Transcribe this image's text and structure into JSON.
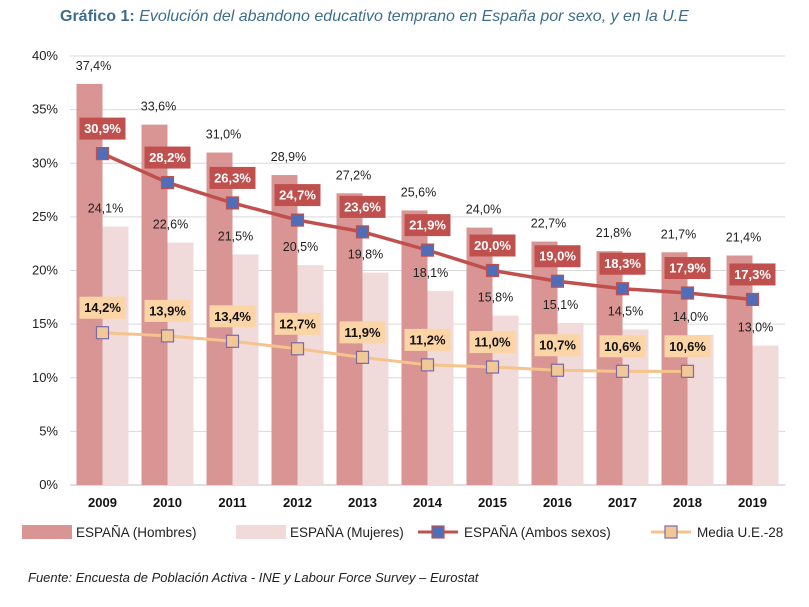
{
  "title": {
    "label": "Gráfico 1:",
    "text": "Evolución del abandono educativo temprano en España por sexo, y en la U.E"
  },
  "source": "Fuente: Encuesta de Población Activa - INE y Labour Force Survey – Eurostat",
  "colors": {
    "hombres": "#d99494",
    "mujeres": "#f0dada",
    "ambos_line": "#c0504d",
    "ambos_marker": "#4f6db8",
    "ue_line": "#f5c48c",
    "ue_marker": "#f2c896",
    "ue_marker_border": "#7a6aa8",
    "label_red_bg": "#c0504d",
    "label_orange_bg": "#fbd5a6"
  },
  "chart_data": {
    "type": "bar",
    "categories": [
      "2009",
      "2010",
      "2011",
      "2012",
      "2013",
      "2014",
      "2015",
      "2016",
      "2017",
      "2018",
      "2019"
    ],
    "ylim": [
      0,
      40
    ],
    "yticks": [
      "0%",
      "5%",
      "10%",
      "15%",
      "20%",
      "25%",
      "30%",
      "35%",
      "40%"
    ],
    "grid": true,
    "legend_position": "bottom",
    "series": [
      {
        "name": "ESPAÑA (Hombres)",
        "kind": "bar",
        "values": [
          37.4,
          33.6,
          31.0,
          28.9,
          27.2,
          25.6,
          24.0,
          22.7,
          21.8,
          21.7,
          21.4
        ],
        "labels": [
          "37,4%",
          "33,6%",
          "31,0%",
          "28,9%",
          "27,2%",
          "25,6%",
          "24,0%",
          "22,7%",
          "21,8%",
          "21,7%",
          "21,4%"
        ]
      },
      {
        "name": "ESPAÑA (Mujeres)",
        "kind": "bar",
        "values": [
          24.1,
          22.6,
          21.5,
          20.5,
          19.8,
          18.1,
          15.8,
          15.1,
          14.5,
          14.0,
          13.0
        ],
        "labels": [
          "24,1%",
          "22,6%",
          "21,5%",
          "20,5%",
          "19,8%",
          "18,1%",
          "15,8%",
          "15,1%",
          "14,5%",
          "14,0%",
          "13,0%"
        ]
      },
      {
        "name": "ESPAÑA (Ambos sexos)",
        "kind": "line",
        "values": [
          30.9,
          28.2,
          26.3,
          24.7,
          23.6,
          21.9,
          20.0,
          19.0,
          18.3,
          17.9,
          17.3
        ],
        "labels": [
          "30,9%",
          "28,2%",
          "26,3%",
          "24,7%",
          "23,6%",
          "21,9%",
          "20,0%",
          "19,0%",
          "18,3%",
          "17,9%",
          "17,3%"
        ]
      },
      {
        "name": "Media U.E.-28",
        "kind": "line",
        "values": [
          14.2,
          13.9,
          13.4,
          12.7,
          11.9,
          11.2,
          11.0,
          10.7,
          10.6,
          10.6,
          null
        ],
        "labels": [
          "14,2%",
          "13,9%",
          "13,4%",
          "12,7%",
          "11,9%",
          "11,2%",
          "11,0%",
          "10,7%",
          "10,6%",
          "10,6%",
          null
        ]
      }
    ]
  }
}
